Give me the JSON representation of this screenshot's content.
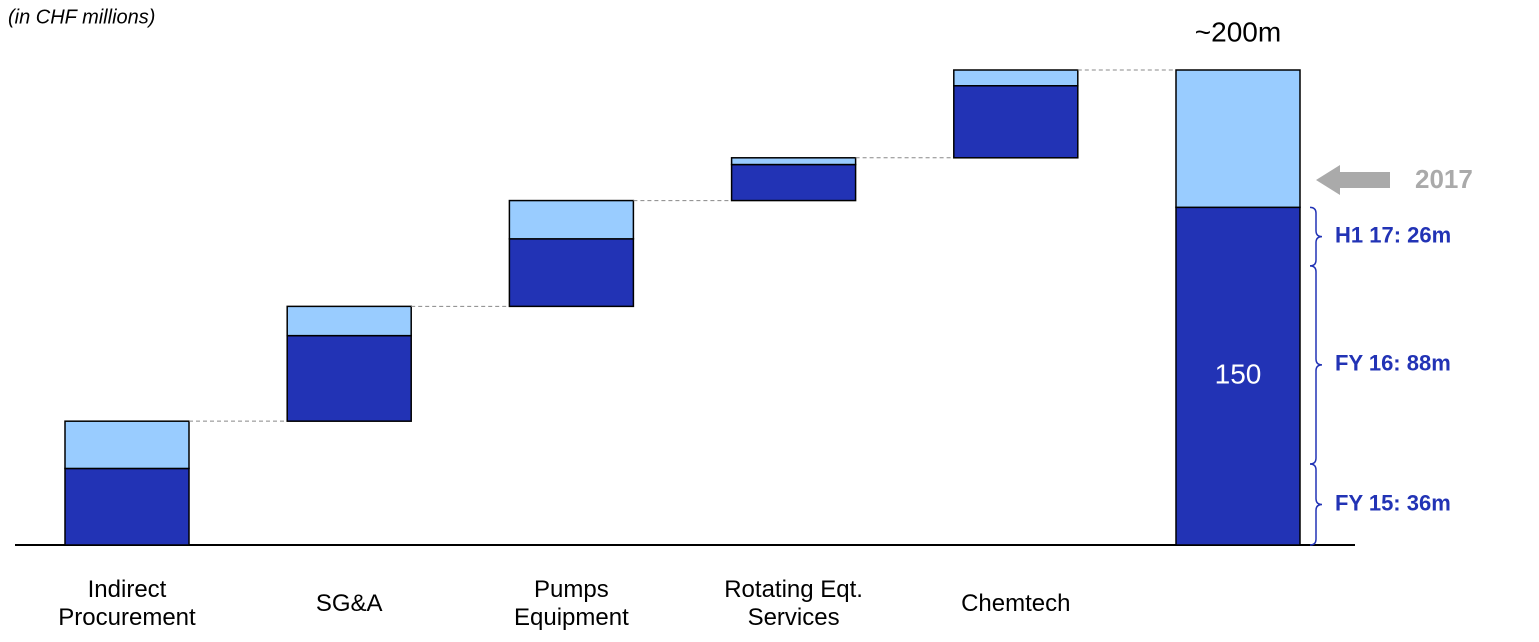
{
  "chart_data": {
    "type": "waterfall",
    "subtitle": "(in CHF millions)",
    "categories": [
      "Indirect Procurement",
      "SG&A",
      "Pumps Equipment",
      "Rotating Eqt. Services",
      "Chemtech",
      null
    ],
    "series": [
      {
        "color": "#2233b5",
        "values": [
          34,
          38,
          30,
          16,
          32,
          150
        ]
      },
      {
        "color": "#99ccff",
        "values": [
          21,
          13,
          17,
          3,
          7,
          61
        ]
      }
    ],
    "total_label": "~200m",
    "brackets": [
      {
        "label": "FY 15: 36m",
        "value": 36
      },
      {
        "label": "FY 16: 88m",
        "value": 88
      },
      {
        "label": "H1 17: 26m",
        "value": 26
      }
    ],
    "arrow_label": "2017"
  }
}
